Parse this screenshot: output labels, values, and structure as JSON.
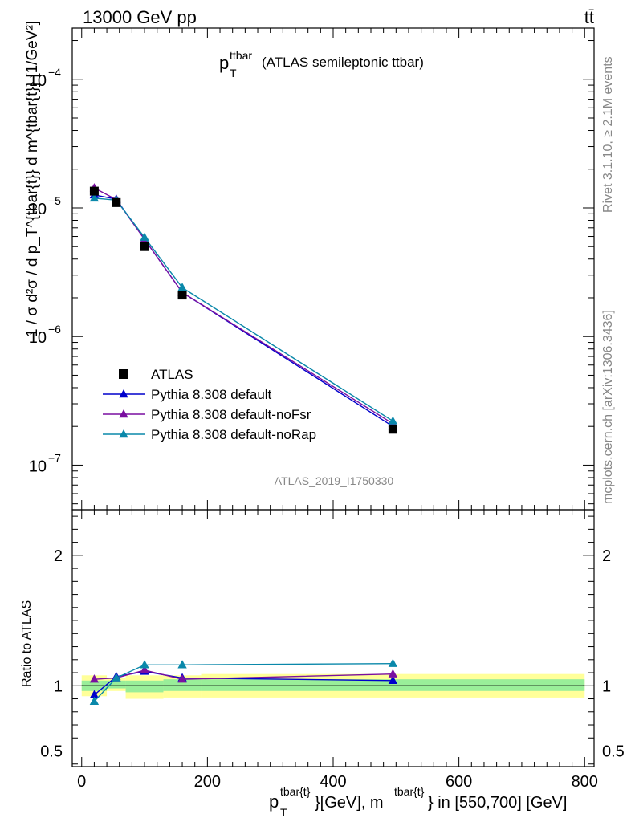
{
  "header": {
    "energy": "13000 GeV pp",
    "process": "tt̄"
  },
  "side": {
    "rivet": "Rivet 3.1.10, ≥ 2.1M events",
    "mcplots": "mcplots.cern.ch [arXiv:1306.3436]"
  },
  "plot_title": {
    "main": "p",
    "sub": "T",
    "sup": "ttbar",
    "rest": "(ATLAS semileptonic ttbar)"
  },
  "watermark": "ATLAS_2019_I1750330",
  "ylabel_main": "1 / σ d²σ / d p_T^{tbar{t}} d m^{tbar{t}} [1/GeV²]",
  "ylabel_ratio": "Ratio to ATLAS",
  "xlabel": {
    "p": "p",
    "sub": "T",
    "sup1": "tbar{t}",
    "mid": "}[GeV], m",
    "sup2": "tbar{t}",
    "end": "} in [550,700] [GeV]"
  },
  "legend": [
    {
      "label": "ATLAS",
      "color": "#000000",
      "marker": "square"
    },
    {
      "label": "Pythia 8.308 default",
      "color": "#0000cc",
      "marker": "triangle"
    },
    {
      "label": "Pythia 8.308 default-noFsr",
      "color": "#7a0fa0",
      "marker": "triangle"
    },
    {
      "label": "Pythia 8.308 default-noRap",
      "color": "#0a88aa",
      "marker": "triangle"
    }
  ],
  "chart_data": [
    {
      "type": "line",
      "panel": "main",
      "yscale": "log",
      "xlim": [
        -15,
        815
      ],
      "ylim": [
        4.5e-08,
        0.00025
      ],
      "ytick_labels": [
        {
          "mant": "10",
          "exp": "−7",
          "value": 1e-07
        },
        {
          "mant": "10",
          "exp": "−6",
          "value": 1e-06
        },
        {
          "mant": "10",
          "exp": "−5",
          "value": 1e-05
        },
        {
          "mant": "10",
          "exp": "−4",
          "value": 0.0001
        }
      ],
      "x": [
        20,
        55,
        100,
        160,
        495
      ],
      "data": {
        "name": "ATLAS",
        "y": [
          1.35e-05,
          1.1e-05,
          5e-06,
          2.1e-06,
          1.9e-07
        ]
      },
      "series": [
        {
          "name": "Pythia 8.308 default",
          "y": [
            1.26e-05,
            1.17e-05,
            5.7e-06,
            2.2e-06,
            2e-07
          ]
        },
        {
          "name": "Pythia 8.308 default-noFsr",
          "y": [
            1.43e-05,
            1.16e-05,
            5.7e-06,
            2.2e-06,
            2.1e-07
          ]
        },
        {
          "name": "Pythia 8.308 default-noRap",
          "y": [
            1.19e-05,
            1.15e-05,
            5.9e-06,
            2.4e-06,
            2.2e-07
          ]
        }
      ]
    },
    {
      "type": "line",
      "panel": "ratio",
      "xlim": [
        -15,
        815
      ],
      "ylim": [
        0.38,
        2.35
      ],
      "ytick_labels": [
        "0.5",
        "1",
        "2"
      ],
      "ytick_values": [
        0.5,
        1,
        2
      ],
      "xtick_labels": [
        "0",
        "200",
        "400",
        "600",
        "800"
      ],
      "xtick_values": [
        0,
        200,
        400,
        600,
        800
      ],
      "x": [
        20,
        55,
        100,
        160,
        495
      ],
      "bands": [
        {
          "x0": 0,
          "x1": 40,
          "stat_lo": 0.96,
          "stat_hi": 1.04,
          "tot_lo": 0.92,
          "tot_hi": 1.08
        },
        {
          "x0": 40,
          "x1": 70,
          "stat_lo": 0.98,
          "stat_hi": 1.04,
          "tot_lo": 0.96,
          "tot_hi": 1.06
        },
        {
          "x0": 70,
          "x1": 130,
          "stat_lo": 0.95,
          "stat_hi": 1.04,
          "tot_lo": 0.9,
          "tot_hi": 1.08
        },
        {
          "x0": 130,
          "x1": 190,
          "stat_lo": 0.96,
          "stat_hi": 1.05,
          "tot_lo": 0.91,
          "tot_hi": 1.08
        },
        {
          "x0": 190,
          "x1": 800,
          "stat_lo": 0.96,
          "stat_hi": 1.05,
          "tot_lo": 0.91,
          "tot_hi": 1.09
        }
      ],
      "series": [
        {
          "name": "Pythia 8.308 default",
          "y": [
            0.93,
            1.07,
            1.11,
            1.06,
            1.04
          ]
        },
        {
          "name": "Pythia 8.308 default-noFsr",
          "y": [
            1.05,
            1.06,
            1.12,
            1.05,
            1.09
          ]
        },
        {
          "name": "Pythia 8.308 default-noRap",
          "y": [
            0.88,
            1.06,
            1.16,
            1.16,
            1.17
          ]
        }
      ]
    }
  ]
}
